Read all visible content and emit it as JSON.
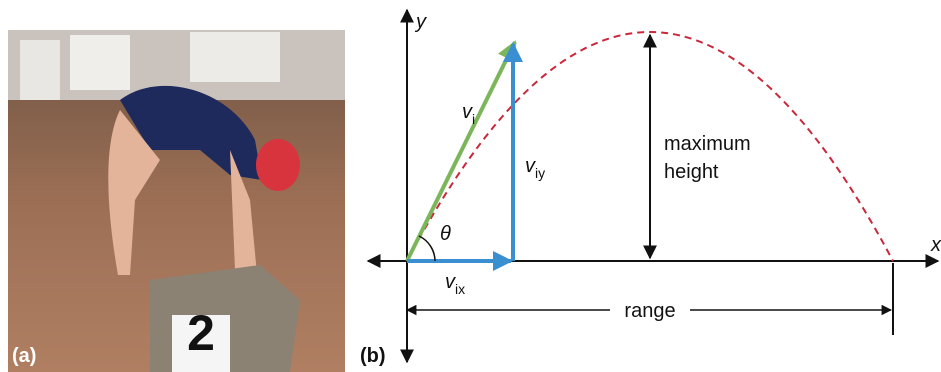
{
  "photo": {
    "label": "(a)",
    "block_number": "2"
  },
  "diagram": {
    "label": "(b)",
    "axes": {
      "y": "y",
      "x": "x"
    },
    "vectors": {
      "initial": {
        "main": "v",
        "sub": "i"
      },
      "vertical": {
        "main": "v",
        "sub": "iy"
      },
      "horizontal": {
        "main": "v",
        "sub": "ix"
      }
    },
    "angle": "θ",
    "max_height": [
      "maximum",
      "height"
    ],
    "range": "range"
  }
}
